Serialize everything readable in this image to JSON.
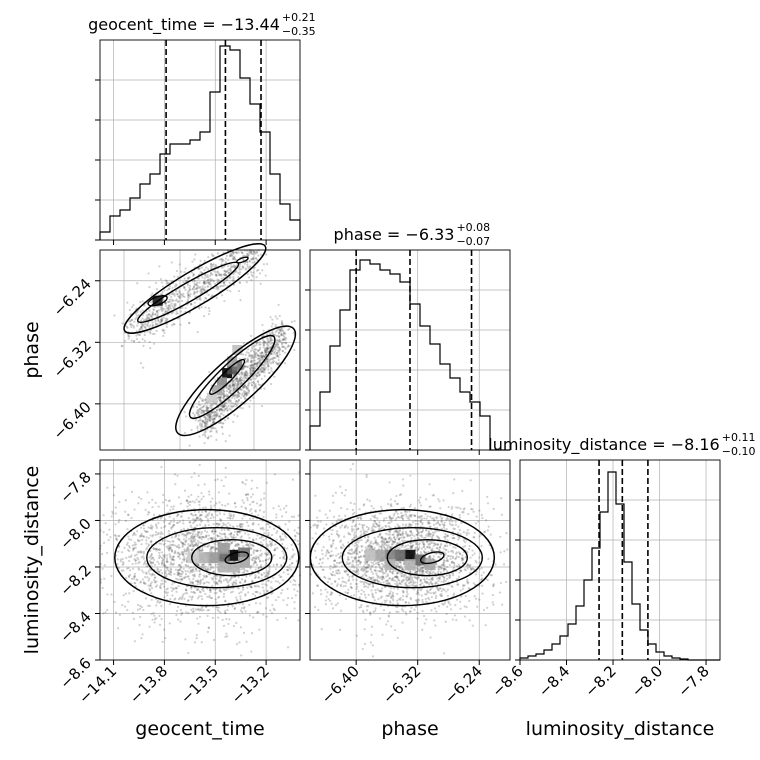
{
  "chart_data": [
    {
      "type": "histogram",
      "panel": "diag-geocent_time",
      "title": {
        "name": "geocent_time",
        "median": "−13.44",
        "plus": "+0.21",
        "minus": "−0.35"
      },
      "x": {
        "param": "geocent_time",
        "range": [
          -14.18,
          -13.0
        ],
        "ticks": [
          -14.1,
          -13.8,
          -13.5,
          -13.2
        ],
        "tick_labels": [
          "−14.1",
          "−13.8",
          "−13.5",
          "−13.2"
        ]
      },
      "ymax": 1.0,
      "bins": {
        "start": -14.18,
        "width": 0.059,
        "heights": [
          0.04,
          0.12,
          0.15,
          0.21,
          0.28,
          0.33,
          0.43,
          0.48,
          0.48,
          0.5,
          0.54,
          0.74,
          0.97,
          0.95,
          0.81,
          0.68,
          0.54,
          0.33,
          0.18,
          0.1,
          0.0
        ]
      },
      "quantile_lines": [
        -13.79,
        -13.44,
        -13.23
      ],
      "grid": true
    },
    {
      "type": "histogram",
      "panel": "diag-phase",
      "title": {
        "name": "phase",
        "median": "−6.33",
        "plus": "+0.08",
        "minus": "−0.07"
      },
      "x": {
        "param": "phase",
        "range": [
          -6.46,
          -6.2
        ],
        "ticks": [
          -6.4,
          -6.32,
          -6.24
        ],
        "tick_labels": [
          "−6.40",
          "−6.32",
          "−6.24"
        ]
      },
      "ymax": 1.0,
      "bins": {
        "start": -6.46,
        "width": 0.013,
        "heights": [
          0.12,
          0.29,
          0.52,
          0.7,
          0.9,
          0.95,
          0.93,
          0.9,
          0.88,
          0.84,
          0.73,
          0.62,
          0.53,
          0.43,
          0.36,
          0.29,
          0.24,
          0.17,
          0.0,
          0.0
        ]
      },
      "quantile_lines": [
        -6.4,
        -6.33,
        -6.25
      ],
      "grid": true
    },
    {
      "type": "histogram",
      "panel": "diag-luminosity_distance",
      "title": {
        "name": "luminosity_distance",
        "median": "−8.16",
        "plus": "+0.11",
        "minus": "−0.10"
      },
      "x": {
        "param": "luminosity_distance",
        "range": [
          -8.6,
          -7.74
        ],
        "ticks": [
          -8.6,
          -8.4,
          -8.2,
          -8.0,
          -7.8
        ],
        "tick_labels": [
          "−8.6",
          "−8.4",
          "−8.2",
          "−8.0",
          "−7.8"
        ]
      },
      "ymax": 1.0,
      "bins": {
        "start": -8.6,
        "width": 0.0344,
        "heights": [
          0.01,
          0.02,
          0.03,
          0.05,
          0.08,
          0.12,
          0.18,
          0.27,
          0.4,
          0.56,
          0.74,
          0.94,
          0.78,
          0.49,
          0.28,
          0.15,
          0.08,
          0.04,
          0.02,
          0.01,
          0.005,
          0.0,
          0.0,
          0.0,
          0.0
        ]
      },
      "quantile_lines": [
        -8.26,
        -8.16,
        -8.05
      ],
      "grid": true
    },
    {
      "type": "scatter-contour",
      "panel": "geocent_time-vs-phase",
      "x": {
        "param": "geocent_time",
        "range": [
          -14.18,
          -13.0
        ]
      },
      "y": {
        "param": "phase",
        "range": [
          -6.46,
          -6.2
        ],
        "ticks": [
          -6.4,
          -6.32,
          -6.24
        ],
        "tick_labels": [
          "−6.40",
          "−6.32",
          "−6.24"
        ]
      },
      "grid": true,
      "clusters": [
        {
          "name": "upper-ridge",
          "x0": -14.0,
          "y0": -6.3,
          "x1": -13.24,
          "y1": -6.2,
          "width": 0.016,
          "n": 900
        },
        {
          "name": "lower-ridge",
          "x0": -13.6,
          "y0": -6.43,
          "x1": -13.1,
          "y1": -6.31,
          "width": 0.013,
          "n": 1200
        }
      ],
      "density_peaks": [
        {
          "x": -13.43,
          "y": -6.36,
          "level": 1.0
        },
        {
          "x": -13.4,
          "y": -6.355,
          "level": 0.7
        },
        {
          "x": -13.37,
          "y": -6.35,
          "level": 0.55
        },
        {
          "x": -13.84,
          "y": -6.266,
          "level": 0.9
        },
        {
          "x": -13.4,
          "y": -6.345,
          "level": 0.35
        },
        {
          "x": -13.46,
          "y": -6.372,
          "level": 0.45
        },
        {
          "x": -13.49,
          "y": -6.382,
          "level": 0.35
        },
        {
          "x": -13.37,
          "y": -6.33,
          "level": 0.25
        },
        {
          "x": -13.52,
          "y": -6.392,
          "level": 0.2
        }
      ]
    },
    {
      "type": "scatter-contour",
      "panel": "geocent_time-vs-luminosity_distance",
      "x": {
        "param": "geocent_time",
        "range": [
          -14.18,
          -13.0
        ],
        "ticks": [
          -14.1,
          -13.8,
          -13.5,
          -13.2
        ],
        "tick_labels": [
          "−14.1",
          "−13.8",
          "−13.5",
          "−13.2"
        ]
      },
      "y": {
        "param": "luminosity_distance",
        "range": [
          -8.6,
          -7.74
        ],
        "ticks": [
          -8.6,
          -8.4,
          -8.2,
          -8.0,
          -7.8
        ],
        "tick_labels": [
          "−8.6",
          "−8.4",
          "−8.2",
          "−8.0",
          "−7.8"
        ]
      },
      "grid": true,
      "blob": {
        "cx": -13.55,
        "cy": -8.16,
        "sx": 0.3,
        "sy": 0.13,
        "n": 2200
      },
      "density_peaks": [
        {
          "x": -13.39,
          "y": -8.15,
          "level": 1.0
        },
        {
          "x": -13.45,
          "y": -8.16,
          "level": 0.6
        },
        {
          "x": -13.33,
          "y": -8.14,
          "level": 0.55
        },
        {
          "x": -13.45,
          "y": -8.12,
          "level": 0.4
        },
        {
          "x": -13.51,
          "y": -8.16,
          "level": 0.4
        },
        {
          "x": -13.33,
          "y": -8.18,
          "level": 0.35
        },
        {
          "x": -13.57,
          "y": -8.16,
          "level": 0.3
        },
        {
          "x": -13.63,
          "y": -8.16,
          "level": 0.2
        },
        {
          "x": -13.45,
          "y": -8.2,
          "level": 0.3
        },
        {
          "x": -13.39,
          "y": -8.2,
          "level": 0.3
        }
      ]
    },
    {
      "type": "scatter-contour",
      "panel": "phase-vs-luminosity_distance",
      "x": {
        "param": "phase",
        "range": [
          -6.46,
          -6.2
        ],
        "ticks": [
          -6.4,
          -6.32,
          -6.24
        ],
        "tick_labels": [
          "−6.40",
          "−6.32",
          "−6.24"
        ]
      },
      "y": {
        "param": "luminosity_distance",
        "range": [
          -8.6,
          -7.74
        ]
      },
      "grid": true,
      "blob": {
        "cx": -6.34,
        "cy": -8.16,
        "sx": 0.055,
        "sy": 0.12,
        "n": 2200
      },
      "density_peaks": [
        {
          "x": -6.33,
          "y": -8.15,
          "level": 1.0
        },
        {
          "x": -6.343,
          "y": -8.15,
          "level": 0.6
        },
        {
          "x": -6.356,
          "y": -8.15,
          "level": 0.5
        },
        {
          "x": -6.317,
          "y": -8.17,
          "level": 0.6
        },
        {
          "x": -6.369,
          "y": -8.15,
          "level": 0.35
        },
        {
          "x": -6.382,
          "y": -8.15,
          "level": 0.25
        },
        {
          "x": -6.304,
          "y": -8.19,
          "level": 0.35
        },
        {
          "x": -6.356,
          "y": -8.19,
          "level": 0.3
        },
        {
          "x": -6.33,
          "y": -8.19,
          "level": 0.3
        }
      ]
    }
  ],
  "axis_labels": {
    "geocent_time": "geocent_time",
    "phase": "phase",
    "luminosity_distance": "luminosity_distance"
  }
}
